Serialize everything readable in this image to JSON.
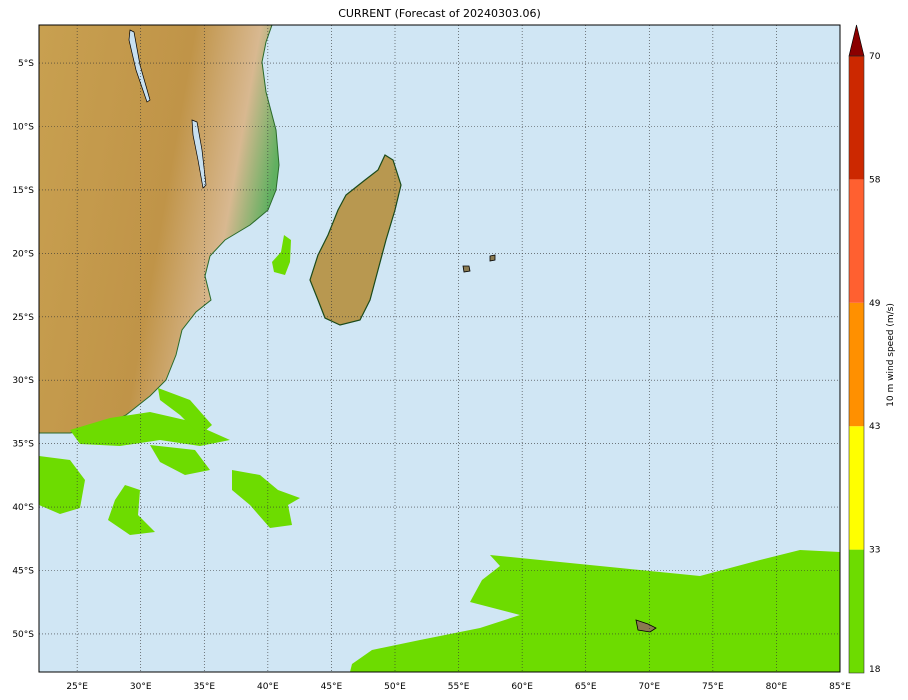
{
  "title": "CURRENT (Forecast of 20240303.06)",
  "map": {
    "lon_range": [
      22,
      85
    ],
    "lat_range": [
      -2,
      -53
    ],
    "lon_ticks": [
      "25°E",
      "30°E",
      "35°E",
      "40°E",
      "45°E",
      "50°E",
      "55°E",
      "60°E",
      "65°E",
      "70°E",
      "75°E",
      "80°E",
      "85°E"
    ],
    "lat_ticks": [
      "5°S",
      "10°S",
      "15°S",
      "20°S",
      "25°S",
      "30°S",
      "35°S",
      "40°S",
      "45°S",
      "50°S"
    ],
    "ocean_color": "#d0e6f4",
    "wind_color": "#6ddc00",
    "grid": "dotted"
  },
  "colorbar": {
    "label": "10 m wind speed (m/s)",
    "ticks": [
      "18",
      "33",
      "43",
      "49",
      "58",
      "70"
    ],
    "colors": [
      "#6ddc00",
      "#ffff00",
      "#ff9000",
      "#ff6030",
      "#cc2800"
    ],
    "extend_color": "#8b0000"
  }
}
